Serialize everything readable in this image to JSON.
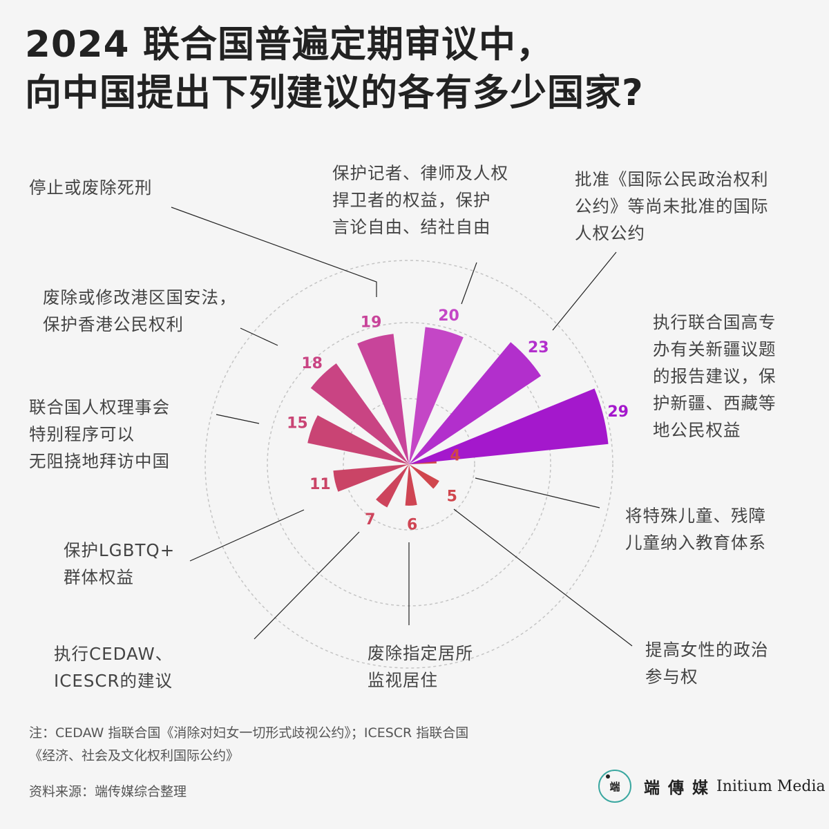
{
  "title": {
    "line1": "2024 联合国普遍定期审议中，",
    "line2": "向中国提出下列建议的各有多少国家?"
  },
  "chart_data": {
    "type": "bar",
    "subtype": "radial-bar",
    "categories": [
      "将特殊儿童、残障儿童纳入教育体系",
      "提高女性的政治参与权",
      "废除指定居所监视居住",
      "执行CEDAW、ICESCR的建议",
      "保护LGBTQ+群体权益",
      "联合国人权理事会特别程序可以无阻挠地拜访中国",
      "废除或修改港区国安法，保护香港公民权利",
      "停止或废除死刑",
      "保护记者、律师及人权捍卫者的权益，保护言论自由、结社自由",
      "批准《国际公民政治权利公约》等尚未批准的国际人权公约",
      "执行联合国高专办有关新疆议题的报告建议，保护新疆、西藏等地公民权益"
    ],
    "values": [
      4,
      5,
      6,
      7,
      11,
      15,
      18,
      19,
      20,
      23,
      29
    ],
    "value_labels": [
      "4",
      "5",
      "6",
      "7",
      "11",
      "15",
      "18",
      "19",
      "20",
      "23",
      "29"
    ],
    "colors": [
      "#d14747",
      "#d0464d",
      "#cf4553",
      "#cd445c",
      "#ca4466",
      "#c94474",
      "#c94483",
      "#c8449a",
      "#c446c6",
      "#b22fcc",
      "#a418cc"
    ],
    "grid": "dashed concentric circles",
    "legend": "none"
  },
  "labels": {
    "l4": [
      "将特殊儿童、残障",
      "儿童纳入教育体系"
    ],
    "l5": [
      "提高女性的政治",
      "参与权"
    ],
    "l6": [
      "废除指定居所",
      "监视居住"
    ],
    "l7": [
      "执行CEDAW、",
      "ICESCR的建议"
    ],
    "l11": [
      "保护LGBTQ+",
      "群体权益"
    ],
    "l15": [
      "联合国人权理事会",
      "特别程序可以",
      "无阻挠地拜访中国"
    ],
    "l18": [
      "废除或修改港区国安法，",
      "保护香港公民权利"
    ],
    "l19": [
      "停止或废除死刑"
    ],
    "l20": [
      "保护记者、律师及人权",
      "捍卫者的权益，保护",
      "言论自由、结社自由"
    ],
    "l23": [
      "批准《国际公民政治权利",
      "公约》等尚未批准的国际",
      "人权公约"
    ],
    "l29": [
      "执行联合国高专",
      "办有关新疆议题",
      "的报告建议，保",
      "护新疆、西藏等",
      "地公民权益"
    ]
  },
  "note": {
    "line1": "注：CEDAW 指联合国《消除对妇女一切形式歧视公约》；ICESCR 指联合国",
    "line2": "《经济、社会及文化权利国际公约》"
  },
  "source": "资料来源：端传媒综合整理",
  "logo": {
    "mark": "端",
    "cn": "端 傳 媒",
    "en": "Initium Media",
    "accent": "#3aa7a0"
  }
}
